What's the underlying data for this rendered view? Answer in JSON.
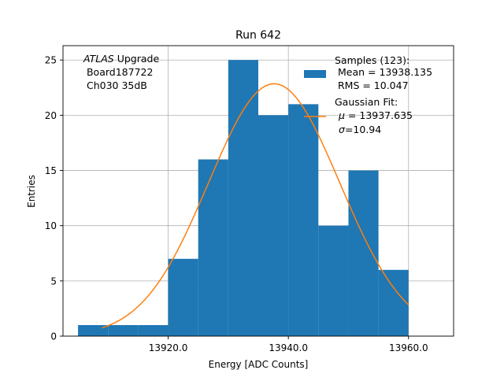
{
  "chart_data": {
    "type": "bar",
    "title": "Run 642",
    "xlabel": "Energy [ADC Counts]",
    "ylabel": "Entries",
    "xlim": [
      13902.5,
      13967.5
    ],
    "ylim": [
      0,
      26.3
    ],
    "grid": true,
    "x_ticks": [
      13920.0,
      13940.0,
      13960.0
    ],
    "x_tick_labels": [
      "13920.0",
      "13940.0",
      "13960.0"
    ],
    "y_ticks": [
      0,
      5,
      10,
      15,
      20,
      25
    ],
    "y_tick_labels": [
      "0",
      "5",
      "10",
      "15",
      "20",
      "25"
    ],
    "histogram": {
      "bin_edges": [
        13905,
        13910,
        13915,
        13920,
        13925,
        13930,
        13935,
        13940,
        13945,
        13950,
        13955,
        13960
      ],
      "counts": [
        1,
        1,
        1,
        7,
        16,
        25,
        20,
        21,
        10,
        15,
        6
      ],
      "color": "#1f77b4"
    },
    "fit": {
      "type": "gaussian",
      "mu": 13937.635,
      "sigma": 10.94,
      "amplitude": 22.85,
      "x_range": [
        13909,
        13960
      ],
      "color": "#ff7f0e"
    },
    "annotation_lines": [
      {
        "italic": "ATLAS",
        "rest": " Upgrade"
      },
      {
        "italic": "",
        "rest": " Board187722"
      },
      {
        "italic": "",
        "rest": " Ch030 35dB"
      }
    ],
    "legend": {
      "position": "upper right",
      "samples_lines": [
        "Samples (123):",
        " Mean = 13938.135",
        " RMS = 10.047"
      ],
      "fit_title": "Gaussian Fit:",
      "fit_mu_symbol": "μ",
      "fit_mu_value": " = 13937.635",
      "fit_sigma_symbol": "σ",
      "fit_sigma_value": "=10.94"
    }
  }
}
